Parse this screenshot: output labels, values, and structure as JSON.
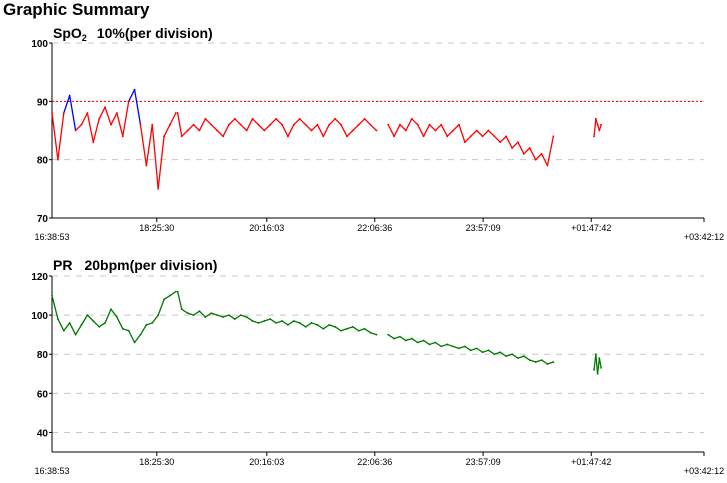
{
  "title": "Graphic Summary",
  "colors": {
    "spo2_below": "#ff0000",
    "spo2_above": "#0000ff",
    "pr_line": "#007700",
    "threshold_line": "#ff0000",
    "grid": "#c8c8c8",
    "axis": "#000000"
  },
  "chart_data": [
    {
      "type": "line",
      "title_main": "SpO",
      "title_sub": "2",
      "title_rest": "10%(per division)",
      "ylim": [
        70,
        100
      ],
      "yticks": [
        70,
        80,
        90,
        100
      ],
      "grid": true,
      "threshold": 90,
      "xlim": [
        0,
        11.054
      ],
      "xtick_positions": [
        1.777,
        3.642,
        5.472,
        7.309,
        9.142
      ],
      "xtick_labels": [
        "18:25:30",
        "20:16:03",
        "22:06:36",
        "23:57:09",
        "+01:47:42"
      ],
      "x_start_label": "16:38:53",
      "x_end_label": "+03:42:12",
      "series": [
        {
          "segments": [
            {
              "x": [
                0.0,
                0.1,
                0.2,
                0.3,
                0.4,
                0.5,
                0.6,
                0.7,
                0.8,
                0.9,
                1.0,
                1.1,
                1.2,
                1.3,
                1.4,
                1.5,
                1.6,
                1.7,
                1.8,
                1.9,
                2.0,
                2.1
              ],
              "y": [
                88,
                80,
                88,
                91,
                85,
                86,
                88,
                83,
                87,
                89,
                86,
                88,
                84,
                90,
                92,
                86,
                79,
                86,
                75,
                84,
                86,
                88
              ]
            },
            {
              "x": [
                2.13,
                2.2,
                2.3,
                2.4,
                2.5,
                2.6,
                2.7,
                2.8,
                2.9,
                3.0,
                3.1,
                3.2,
                3.3,
                3.4,
                3.5,
                3.6,
                3.7,
                3.8,
                3.9,
                4.0,
                4.1,
                4.2,
                4.3,
                4.4,
                4.5,
                4.6,
                4.7,
                4.8,
                4.9,
                5.0,
                5.1,
                5.2,
                5.3,
                5.4,
                5.5
              ],
              "y": [
                88,
                84,
                85,
                86,
                85,
                87,
                86,
                85,
                84,
                86,
                87,
                86,
                85,
                87,
                86,
                85,
                86,
                87,
                86,
                84,
                86,
                87,
                86,
                85,
                86,
                84,
                86,
                87,
                86,
                84,
                85,
                86,
                87,
                86,
                85
              ]
            },
            {
              "x": [
                5.7,
                5.8,
                5.9,
                6.0,
                6.1,
                6.2,
                6.3,
                6.4,
                6.5,
                6.6,
                6.7,
                6.8,
                6.9,
                7.0,
                7.1,
                7.2,
                7.3,
                7.4,
                7.5,
                7.6,
                7.7,
                7.8,
                7.9,
                8.0,
                8.1,
                8.2,
                8.3,
                8.4,
                8.5
              ],
              "y": [
                86,
                84,
                86,
                85,
                87,
                86,
                84,
                86,
                85,
                86,
                84,
                85,
                86,
                83,
                84,
                85,
                84,
                85,
                84,
                83,
                84,
                82,
                83,
                81,
                82,
                80,
                81,
                79,
                84
              ]
            },
            {
              "x": [
                9.19,
                9.22,
                9.25,
                9.28,
                9.31
              ],
              "y": [
                84,
                87,
                86,
                85,
                86
              ]
            }
          ]
        }
      ]
    },
    {
      "type": "line",
      "title_main": "PR",
      "title_rest": "20bpm(per division)",
      "ylim": [
        30,
        120
      ],
      "yticks": [
        40,
        60,
        80,
        100,
        120
      ],
      "grid": true,
      "xlim": [
        0,
        11.054
      ],
      "xtick_positions": [
        1.777,
        3.642,
        5.472,
        7.309,
        9.142
      ],
      "xtick_labels": [
        "18:25:30",
        "20:16:03",
        "22:06:36",
        "23:57:09",
        "+01:47:42"
      ],
      "x_start_label": "16:38:53",
      "x_end_label": "+03:42:12",
      "series": [
        {
          "segments": [
            {
              "x": [
                0.0,
                0.1,
                0.2,
                0.3,
                0.4,
                0.5,
                0.6,
                0.7,
                0.8,
                0.9,
                1.0,
                1.1,
                1.2,
                1.3,
                1.4,
                1.5,
                1.6,
                1.7,
                1.8,
                1.9,
                2.0,
                2.1
              ],
              "y": [
                110,
                98,
                92,
                96,
                90,
                95,
                100,
                97,
                94,
                96,
                103,
                99,
                93,
                92,
                86,
                90,
                95,
                96,
                100,
                108,
                110,
                112
              ]
            },
            {
              "x": [
                2.13,
                2.2,
                2.3,
                2.4,
                2.5,
                2.6,
                2.7,
                2.8,
                2.9,
                3.0,
                3.1,
                3.2,
                3.3,
                3.4,
                3.5,
                3.6,
                3.7,
                3.8,
                3.9,
                4.0,
                4.1,
                4.2,
                4.3,
                4.4,
                4.5,
                4.6,
                4.7,
                4.8,
                4.9,
                5.0,
                5.1,
                5.2,
                5.3,
                5.4,
                5.5
              ],
              "y": [
                112,
                103,
                101,
                100,
                102,
                99,
                101,
                100,
                99,
                100,
                98,
                100,
                99,
                97,
                96,
                97,
                98,
                96,
                97,
                95,
                97,
                96,
                94,
                96,
                95,
                93,
                95,
                94,
                92,
                93,
                94,
                92,
                93,
                91,
                90
              ]
            },
            {
              "x": [
                5.7,
                5.8,
                5.9,
                6.0,
                6.1,
                6.2,
                6.3,
                6.4,
                6.5,
                6.6,
                6.7,
                6.8,
                6.9,
                7.0,
                7.1,
                7.2,
                7.3,
                7.4,
                7.5,
                7.6,
                7.7,
                7.8,
                7.9,
                8.0,
                8.1,
                8.2,
                8.3,
                8.4,
                8.5
              ],
              "y": [
                90,
                88,
                89,
                87,
                88,
                86,
                87,
                85,
                86,
                84,
                85,
                84,
                83,
                84,
                82,
                83,
                81,
                82,
                80,
                81,
                79,
                80,
                78,
                79,
                77,
                76,
                77,
                75,
                76
              ]
            },
            {
              "x": [
                9.19,
                9.22,
                9.25,
                9.28,
                9.31
              ],
              "y": [
                72,
                80,
                70,
                78,
                73
              ]
            }
          ]
        }
      ]
    }
  ]
}
